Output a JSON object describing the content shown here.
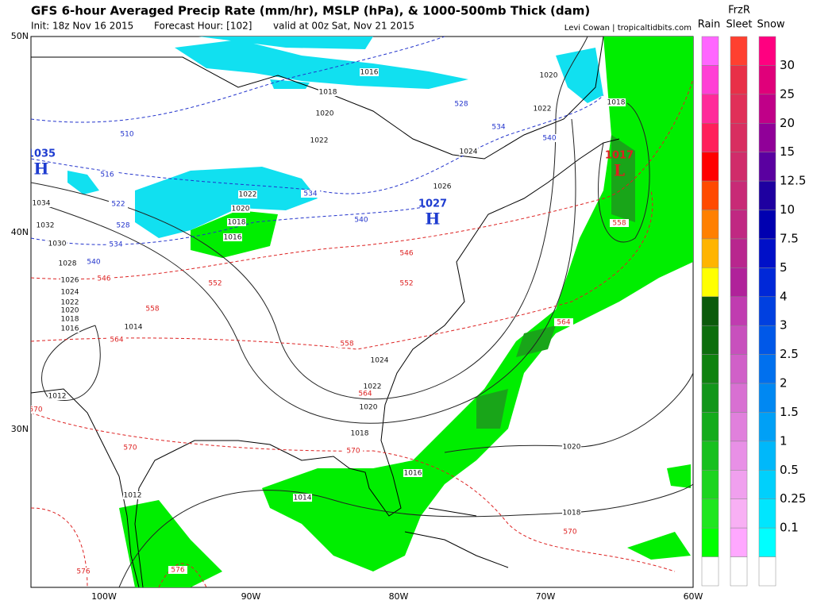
{
  "header": {
    "title": "GFS 6-hour Averaged Precip Rate (mm/hr), MSLP (hPa), & 1000-500mb Thick (dam)",
    "init": "Init: 18z Nov 16 2015",
    "forecast_hour": "Forecast Hour: [102]",
    "valid": "valid at 00z Sat, Nov 21 2015",
    "credit": "Levi Cowan | tropicaltidbits.com"
  },
  "map": {
    "lat_labels": [
      "50N",
      "40N",
      "30N"
    ],
    "lon_labels": [
      "100W",
      "90W",
      "80W",
      "70W",
      "60W"
    ],
    "centers": [
      {
        "pressure": "1035",
        "symbol": "H"
      },
      {
        "pressure": "1027",
        "symbol": "H"
      },
      {
        "pressure": "1017",
        "symbol": "L"
      }
    ],
    "isobar_labels": [
      "1016",
      "1018",
      "1020",
      "1022",
      "1024",
      "1026",
      "1018",
      "1020",
      "1022",
      "1022",
      "1020",
      "1018",
      "1016",
      "1034",
      "1032",
      "1030",
      "1028",
      "1026",
      "1024",
      "1022",
      "1020",
      "1018",
      "1016",
      "1014",
      "1012",
      "1024",
      "1022",
      "1020",
      "1018",
      "1016",
      "1014",
      "1012",
      "1020",
      "1018"
    ],
    "thickness_cold_labels": [
      "510",
      "516",
      "522",
      "528",
      "534",
      "540",
      "528",
      "534",
      "540",
      "534",
      "540"
    ],
    "thickness_warm_labels": [
      "546",
      "552",
      "558",
      "564",
      "546",
      "552",
      "558",
      "564",
      "570",
      "570",
      "570",
      "576",
      "576",
      "558",
      "564",
      "570"
    ]
  },
  "legend": {
    "headers": {
      "freezing_rain": "FrzR",
      "rain": "Rain",
      "sleet": "Sleet",
      "snow": "Snow"
    },
    "scale_labels": [
      "30",
      "25",
      "20",
      "15",
      "12.5",
      "10",
      "7.5",
      "5",
      "4",
      "3",
      "2.5",
      "2",
      "1.5",
      "1",
      "0.5",
      "0.25",
      "0.1"
    ]
  }
}
